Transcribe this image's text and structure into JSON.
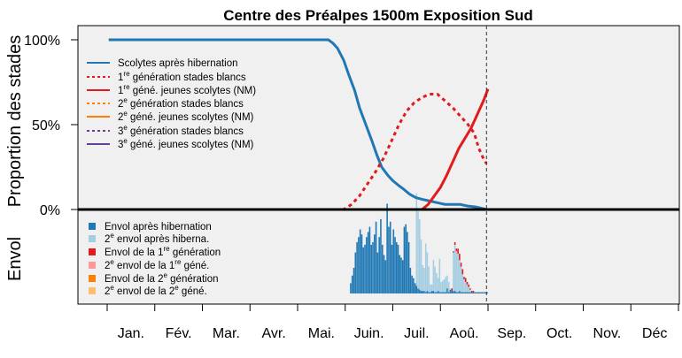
{
  "chart_data": {
    "type": "line",
    "title": "Centre des Préalpes 1500m Exposition Sud",
    "ylabel_top": "Proportion des stades",
    "ylabel_bottom": "Envol",
    "yticks": [
      "100%",
      "50%",
      "0%"
    ],
    "ylim": [
      0,
      100
    ],
    "months": [
      "Jan.",
      "Fév.",
      "Mar.",
      "Avr.",
      "Mai.",
      "Juin.",
      "Juil.",
      "Aoû.",
      "Sep.",
      "Oct.",
      "Nov.",
      "Déc"
    ],
    "today_day": 242,
    "grid": false,
    "legend_position": "top-left",
    "line_series": [
      {
        "name": "Scolytes après hibernation",
        "color": "#1f78b4",
        "dash": "solid",
        "points": [
          [
            1,
            100
          ],
          [
            120,
            100
          ],
          [
            140,
            100
          ],
          [
            143,
            98
          ],
          [
            146,
            95
          ],
          [
            150,
            88
          ],
          [
            153,
            80
          ],
          [
            157,
            70
          ],
          [
            160,
            60
          ],
          [
            164,
            50
          ],
          [
            168,
            40
          ],
          [
            171,
            32
          ],
          [
            174,
            25
          ],
          [
            178,
            20
          ],
          [
            181,
            17
          ],
          [
            185,
            14
          ],
          [
            188,
            12
          ],
          [
            192,
            9
          ],
          [
            196,
            7
          ],
          [
            200,
            6
          ],
          [
            205,
            5
          ],
          [
            210,
            4
          ],
          [
            215,
            3
          ],
          [
            220,
            3
          ],
          [
            225,
            3
          ],
          [
            230,
            2
          ],
          [
            235,
            1.5
          ],
          [
            240,
            0.5
          ],
          [
            242,
            0
          ]
        ]
      },
      {
        "name": "1re génération stades blancs",
        "color": "#e31a1c",
        "dash": "dotted",
        "points": [
          [
            1,
            0
          ],
          [
            145,
            0
          ],
          [
            150,
            0
          ],
          [
            155,
            3
          ],
          [
            160,
            8
          ],
          [
            165,
            15
          ],
          [
            170,
            22
          ],
          [
            175,
            30
          ],
          [
            180,
            40
          ],
          [
            185,
            50
          ],
          [
            190,
            58
          ],
          [
            195,
            63
          ],
          [
            200,
            66
          ],
          [
            205,
            68
          ],
          [
            210,
            68
          ],
          [
            215,
            64
          ],
          [
            220,
            60
          ],
          [
            225,
            55
          ],
          [
            230,
            50
          ],
          [
            234,
            45
          ],
          [
            237,
            36
          ],
          [
            240,
            30
          ],
          [
            242,
            27
          ]
        ]
      },
      {
        "name": "1re géné. jeunes scolytes (NM)",
        "color": "#e31a1c",
        "dash": "solid",
        "points": [
          [
            1,
            0
          ],
          [
            195,
            0
          ],
          [
            200,
            0
          ],
          [
            204,
            3
          ],
          [
            208,
            8
          ],
          [
            212,
            13
          ],
          [
            216,
            20
          ],
          [
            220,
            28
          ],
          [
            224,
            36
          ],
          [
            228,
            42
          ],
          [
            232,
            48
          ],
          [
            236,
            56
          ],
          [
            240,
            64
          ],
          [
            243,
            71
          ]
        ]
      },
      {
        "name": "2e génération stades blancs",
        "color": "#ff7f00",
        "dash": "dotted",
        "points": []
      },
      {
        "name": "2e géné. jeunes scolytes (NM)",
        "color": "#ff7f00",
        "dash": "solid",
        "points": []
      },
      {
        "name": "3e génération stades blancs",
        "color": "#6a3d9a",
        "dash": "dotted",
        "points": []
      },
      {
        "name": "3e géné. jeunes scolytes (NM)",
        "color": "#6a3d9a",
        "dash": "solid",
        "points": []
      }
    ],
    "flight_series": [
      {
        "name": "Envol après hibernation",
        "color": "#1f78b4"
      },
      {
        "name": "2e envol après hiberna.",
        "color": "#a6cee3"
      },
      {
        "name": "Envol de la 1re génération",
        "color": "#e31a1c"
      },
      {
        "name": "2e envol de la 1re géné.",
        "color": "#fb9a99"
      },
      {
        "name": "Envol de la 2e génération",
        "color": "#ff7f00"
      },
      {
        "name": "2e envol de la 2e géné.",
        "color": "#fdbf6f"
      }
    ],
    "flight_bars": {
      "start_day": 140,
      "blue": [
        0,
        0,
        0,
        0,
        0,
        0,
        0,
        0,
        0,
        0,
        0,
        0,
        0,
        0,
        8,
        14,
        20,
        32,
        40,
        44,
        50,
        46,
        36,
        38,
        44,
        48,
        52,
        38,
        40,
        46,
        56,
        32,
        44,
        58,
        38,
        30,
        26,
        70,
        52,
        56,
        38,
        50,
        44,
        40,
        38,
        30,
        28,
        26,
        52,
        54,
        48,
        40,
        20,
        14,
        12,
        8,
        6,
        4,
        3,
        2,
        2,
        2,
        1,
        2,
        1,
        1,
        2,
        2,
        1,
        1,
        2,
        1,
        1,
        1,
        1,
        1,
        4,
        1,
        3,
        2,
        2,
        2,
        1,
        1,
        2,
        1,
        1,
        1,
        1,
        1,
        1,
        1,
        1,
        1,
        1,
        1,
        1,
        1,
        1,
        1,
        1,
        1,
        1
      ],
      "light": [
        0,
        0,
        0,
        0,
        0,
        0,
        0,
        0,
        0,
        0,
        0,
        0,
        0,
        0,
        0,
        0,
        0,
        0,
        0,
        0,
        0,
        0,
        0,
        0,
        0,
        0,
        0,
        0,
        0,
        0,
        0,
        0,
        0,
        0,
        0,
        0,
        0,
        0,
        0,
        0,
        0,
        0,
        0,
        0,
        0,
        0,
        0,
        0,
        0,
        0,
        0,
        0,
        0,
        0,
        0,
        0,
        72,
        60,
        55,
        40,
        20,
        18,
        38,
        30,
        20,
        6,
        5,
        24,
        20,
        15,
        10,
        26,
        8,
        9,
        10,
        12,
        10,
        8,
        0,
        0,
        30,
        36,
        32,
        30,
        24,
        20,
        14,
        10,
        8,
        6,
        4,
        2,
        0,
        0,
        0,
        0,
        0,
        0,
        0,
        0,
        0,
        0,
        0
      ],
      "red": [
        0,
        0,
        0,
        0,
        0,
        0,
        0,
        0,
        0,
        0,
        0,
        0,
        0,
        0,
        0,
        0,
        0,
        0,
        0,
        0,
        0,
        0,
        0,
        0,
        0,
        0,
        0,
        0,
        0,
        0,
        0,
        0,
        0,
        0,
        0,
        0,
        0,
        0,
        0,
        0,
        0,
        0,
        0,
        0,
        0,
        0,
        0,
        0,
        0,
        0,
        0,
        0,
        0,
        0,
        0,
        0,
        0,
        0,
        0,
        0,
        0,
        0,
        0,
        0,
        0,
        0,
        0,
        0,
        0,
        0,
        0,
        0,
        0,
        0,
        0,
        0,
        0,
        0,
        0,
        2,
        1,
        2,
        2,
        4,
        5,
        3,
        4,
        2,
        3,
        2,
        2,
        1,
        1,
        1,
        0,
        0,
        0,
        0,
        0,
        0,
        0,
        0,
        0
      ]
    }
  }
}
